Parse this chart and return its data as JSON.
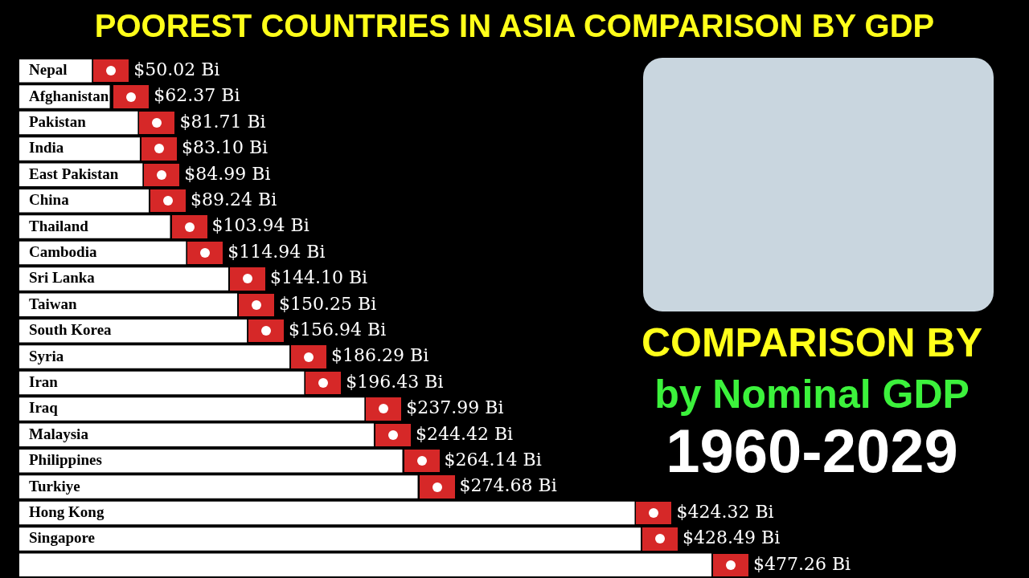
{
  "chart_data": {
    "type": "bar",
    "orientation": "horizontal",
    "title": "POOREST COUNTRIES IN ASIA COMPARISON BY GDP",
    "categories": [
      "Nepal",
      "Afghanistan",
      "Pakistan",
      "India",
      "East Pakistan",
      "China",
      "Thailand",
      "Cambodia",
      "Sri Lanka",
      "Taiwan",
      "South Korea",
      "Syria",
      "Iran",
      "Iraq",
      "Malaysia",
      "Philippines",
      "Turkiye",
      "Hong Kong",
      "Singapore",
      null
    ],
    "values": [
      50.02,
      62.37,
      81.71,
      83.1,
      84.99,
      89.24,
      103.94,
      114.94,
      144.1,
      150.25,
      156.94,
      186.29,
      196.43,
      237.99,
      244.42,
      264.14,
      274.68,
      424.32,
      428.49,
      477.26
    ],
    "value_labels": [
      "$50.02 Bi",
      "$62.37 Bi",
      "$81.71 Bi",
      "$83.10 Bi",
      "$84.99 Bi",
      "$89.24 Bi",
      "$103.94 Bi",
      "$114.94 Bi",
      "$144.10 Bi",
      "$150.25 Bi",
      "$156.94 Bi",
      "$186.29 Bi",
      "$196.43 Bi",
      "$237.99 Bi",
      "$244.42 Bi",
      "$264.14 Bi",
      "$274.68 Bi",
      "$424.32 Bi",
      "$428.49 Bi",
      "$477.26 Bi"
    ],
    "color": "#ffffff",
    "annotations": [
      "COMPARISON BY",
      "by Nominal GDP",
      "1960-2029"
    ]
  }
}
